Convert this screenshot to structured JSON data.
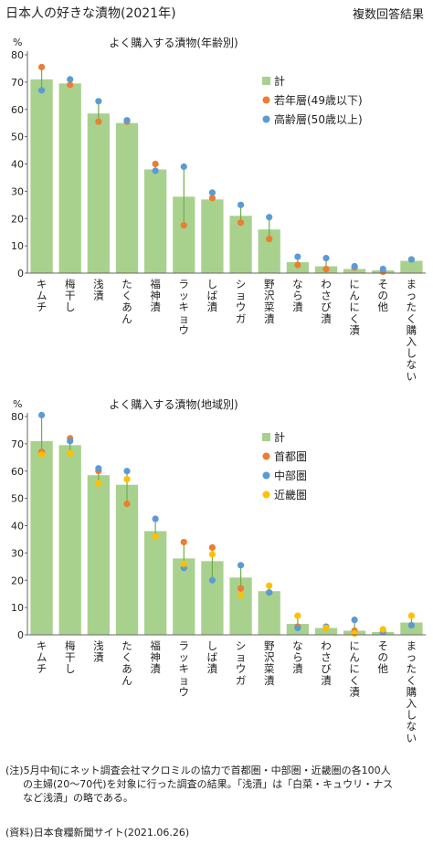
{
  "header": {
    "title": "日本人の好きな漬物(2021年)",
    "note": "複数回答結果"
  },
  "chart_data": [
    {
      "type": "bar",
      "title": "よく購入する漬物(年齢別)",
      "unit": "%",
      "ylim": [
        0,
        80
      ],
      "yticks": [
        0,
        10,
        20,
        30,
        40,
        50,
        60,
        70,
        80
      ],
      "grid": false,
      "legend_position": "right",
      "categories": [
        "キムチ",
        "梅干し",
        "浅漬",
        "たくあん",
        "福神漬",
        "ラッキョウ",
        "しば漬",
        "ショウガ",
        "野沢菜漬",
        "なら漬",
        "わさび漬",
        "にんにく漬",
        "その他",
        "まったく購入しない"
      ],
      "series": [
        {
          "name": "計",
          "kind": "bar",
          "color": "#a9d18e",
          "values": [
            71,
            69.5,
            58.5,
            55,
            38,
            28,
            27,
            21,
            16,
            4,
            2.5,
            1.5,
            1,
            4.5
          ]
        },
        {
          "name": "若年層(49歳以下)",
          "kind": "point",
          "color": "#ed7d31",
          "values": [
            75.5,
            69,
            55.5,
            55.5,
            40,
            17.5,
            27.5,
            18.5,
            12.5,
            3,
            1.5,
            2,
            0.5,
            5
          ]
        },
        {
          "name": "高齢層(50歳以上)",
          "kind": "point",
          "color": "#5b9bd5",
          "values": [
            67,
            71,
            63,
            56,
            37.5,
            39,
            29.5,
            25,
            20.5,
            6,
            5.5,
            2.5,
            1.5,
            5
          ]
        }
      ]
    },
    {
      "type": "bar",
      "title": "よく購入する漬物(地域別)",
      "unit": "%",
      "ylim": [
        0,
        80
      ],
      "yticks": [
        0,
        10,
        20,
        30,
        40,
        50,
        60,
        70,
        80
      ],
      "grid": false,
      "legend_position": "right",
      "categories": [
        "キムチ",
        "梅干し",
        "浅漬",
        "たくあん",
        "福神漬",
        "ラッキョウ",
        "しば漬",
        "ショウガ",
        "野沢菜漬",
        "なら漬",
        "わさび漬",
        "にんにく漬",
        "その他",
        "まったく購入しない"
      ],
      "series": [
        {
          "name": "計",
          "kind": "bar",
          "color": "#a9d18e",
          "values": [
            71,
            69.5,
            58.5,
            55,
            38,
            28,
            27,
            21,
            16,
            4,
            2.5,
            1.5,
            1,
            4.5
          ]
        },
        {
          "name": "首都圏",
          "kind": "point",
          "color": "#ed7d31",
          "values": [
            67,
            72,
            60,
            48,
            36,
            34,
            32,
            17,
            15.5,
            3,
            2.5,
            1.5,
            1,
            3.5
          ]
        },
        {
          "name": "中部圏",
          "kind": "point",
          "color": "#5b9bd5",
          "values": [
            80.5,
            71,
            61,
            60,
            42.5,
            24.5,
            20,
            25.5,
            15.5,
            2.5,
            3,
            5.5,
            1,
            3.5
          ]
        },
        {
          "name": "近畿圏",
          "kind": "point",
          "color": "#ffc000",
          "values": [
            66,
            66.5,
            55.5,
            57,
            36,
            26,
            29.5,
            14.5,
            18,
            7,
            2.5,
            0.5,
            2,
            7
          ]
        }
      ]
    }
  ],
  "footnote": {
    "line1": "(注)5月中旬にネット調査会社マクロミルの協力で首都圏・中部圏・近畿圏の各100人",
    "line2": "の主婦(20〜70代)を対象に行った調査の結果。「浅漬」は「白菜・キュウリ・ナス",
    "line3": "など浅漬」の略である。",
    "source": "(資料)日本食糧新聞サイト(2021.06.26)"
  }
}
